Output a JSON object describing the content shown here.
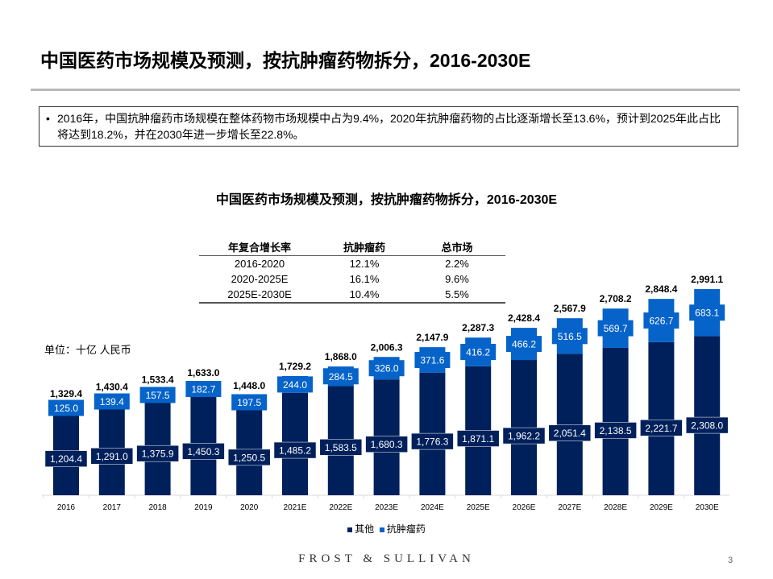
{
  "header": {
    "title": "中国医药市场规模及预测，按抗肿瘤药物拆分，2016-2030E"
  },
  "note": "2016年，中国抗肿瘤药市场规模在整体药物市场规模中占为9.4%，2020年抗肿瘤药物的占比逐渐增长至13.6%，预计到2025年此占比将达到18.2%，并在2030年进一步增长至22.8%。",
  "cagr_table": {
    "headers": [
      "年复合增长率",
      "抗肿瘤药",
      "总市场"
    ],
    "rows": [
      [
        "2016-2020",
        "12.1%",
        "2.2%"
      ],
      [
        "2020-2025E",
        "16.1%",
        "9.6%"
      ],
      [
        "2025E-2030E",
        "10.4%",
        "5.5%"
      ]
    ]
  },
  "unit": "单位：十亿 人民币",
  "footer": {
    "brand": "FROST & SULLIVAN",
    "page": "3"
  },
  "chart_data": {
    "type": "bar",
    "stacked": true,
    "title": "中国医药市场规模及预测，按抗肿瘤药物拆分，2016-2030E",
    "categories": [
      "2016",
      "2017",
      "2018",
      "2019",
      "2020",
      "2021E",
      "2022E",
      "2023E",
      "2024E",
      "2025E",
      "2026E",
      "2027E",
      "2028E",
      "2029E",
      "2030E"
    ],
    "series": [
      {
        "name": "其他",
        "color": "#00205b",
        "values": [
          1204.4,
          1291.0,
          1375.9,
          1450.3,
          1250.5,
          1485.2,
          1583.5,
          1680.3,
          1776.3,
          1871.1,
          1962.2,
          2051.4,
          2138.5,
          2221.7,
          2308.0
        ],
        "labels": [
          "1,204.4",
          "1,291.0",
          "1,375.9",
          "1,450.3",
          "1,250.5",
          "1,485.2",
          "1,583.5",
          "1,680.3",
          "1,776.3",
          "1,871.1",
          "1,962.2",
          "2,051.4",
          "2,138.5",
          "2,221.7",
          "2,308.0"
        ]
      },
      {
        "name": "抗肿瘤药",
        "color": "#0563c9",
        "values": [
          125.0,
          139.4,
          157.5,
          182.7,
          197.5,
          244.0,
          284.5,
          326.0,
          371.6,
          416.2,
          466.2,
          516.5,
          569.7,
          626.7,
          683.1
        ],
        "labels": [
          "125.0",
          "139.4",
          "157.5",
          "182.7",
          "197.5",
          "244.0",
          "284.5",
          "326.0",
          "371.6",
          "416.2",
          "466.2",
          "516.5",
          "569.7",
          "626.7",
          "683.1"
        ]
      }
    ],
    "totals": [
      "1,329.4",
      "1,430.4",
      "1,533.4",
      "1,633.0",
      "1,448.0",
      "1,729.2",
      "1,868.0",
      "2,006.3",
      "2,147.9",
      "2,287.3",
      "2,428.4",
      "2,567.9",
      "2,708.2",
      "2,848.4",
      "2,991.1"
    ],
    "legend": "bottom",
    "grid": false
  }
}
